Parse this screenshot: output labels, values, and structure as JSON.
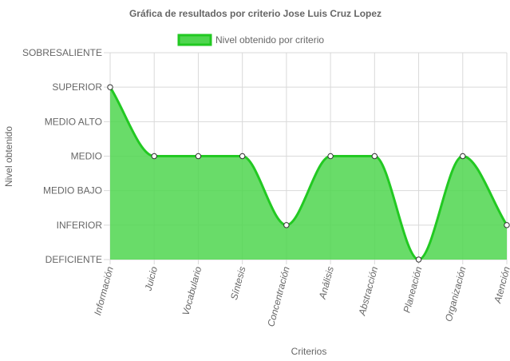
{
  "chart_data": {
    "type": "area",
    "title": "Gráfica de resultados por criterio Jose Luis Cruz Lopez",
    "xlabel": "Criterios",
    "ylabel": "Nivel obtenido",
    "y_categories": [
      "DEFICIENTE",
      "INFERIOR",
      "MEDIO BAJO",
      "MEDIO",
      "MEDIO ALTO",
      "SUPERIOR",
      "SOBRESALIENTE"
    ],
    "categories": [
      "Información",
      "Juicio",
      "Vocabulario",
      "Síntesis",
      "Concentración",
      "Análisis",
      "Abstracción",
      "Planeación",
      "Organización",
      "Atención"
    ],
    "series": [
      {
        "name": "Nivel obtenido por criterio",
        "values": [
          "SUPERIOR",
          "MEDIO",
          "MEDIO",
          "MEDIO",
          "INFERIOR",
          "MEDIO",
          "MEDIO",
          "DEFICIENTE",
          "MEDIO",
          "INFERIOR"
        ]
      }
    ],
    "legend_position": "top",
    "grid": true,
    "colors": {
      "fill": "#4fd64f",
      "line": "#22c922",
      "grid": "#d9d9d9",
      "point_fill": "#ffffff",
      "point_stroke": "#333333"
    }
  }
}
